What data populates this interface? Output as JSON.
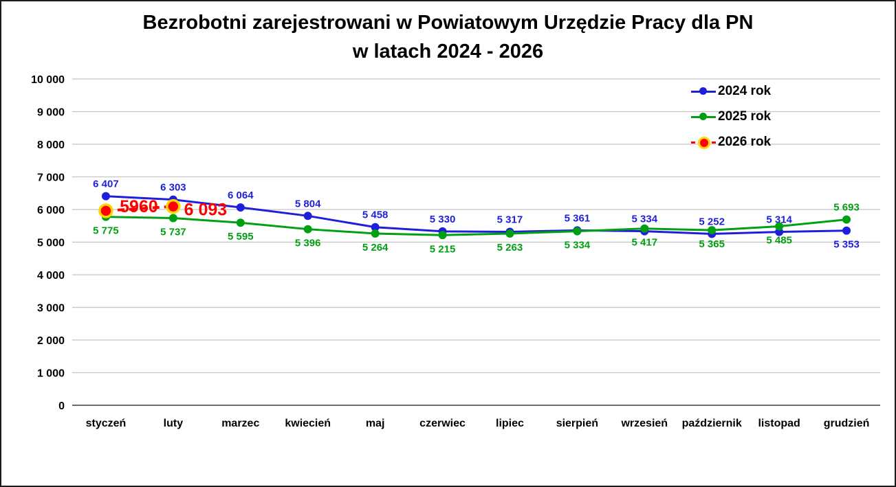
{
  "title": {
    "line1": "Bezrobotni zarejestrowani w Powiatowym Urzędzie Pracy dla PN",
    "line2": "w latach 2024 - 2026"
  },
  "legend": {
    "position": "top-right",
    "items": [
      {
        "label": "2024 rok",
        "color": "#1f1fdb",
        "dashed": false,
        "ring": null
      },
      {
        "label": "2025 rok",
        "color": "#00a012",
        "dashed": false,
        "ring": null
      },
      {
        "label": "2026 rok",
        "color": "#ff0000",
        "dashed": true,
        "ring": "#ffd700"
      }
    ]
  },
  "chart_data": {
    "type": "line",
    "title": "Bezrobotni zarejestrowani w Powiatowym Urzędzie Pracy dla PN w latach 2024 - 2026",
    "categories": [
      "styczeń",
      "luty",
      "marzec",
      "kwiecień",
      "maj",
      "czerwiec",
      "lipiec",
      "sierpień",
      "wrzesień",
      "październik",
      "listopad",
      "grudzień"
    ],
    "xlabel": "",
    "ylabel": "",
    "y_axis": {
      "min": 0,
      "max": 10000,
      "step": 1000,
      "tick_labels": [
        "0",
        "1 000",
        "2 000",
        "3 000",
        "4 000",
        "5 000",
        "6 000",
        "7 000",
        "8 000",
        "9 000",
        "10 000"
      ]
    },
    "grid": true,
    "colors": {
      "gridline": "#c4c4c4",
      "axis_line": "#3a3a3a",
      "text": "#000000"
    },
    "series": [
      {
        "name": "2024 rok",
        "color": "#1f1fdb",
        "dashed": false,
        "marker_radius": 6,
        "marker_ring": null,
        "values": [
          6407,
          6303,
          6064,
          5804,
          5458,
          5330,
          5317,
          5361,
          5334,
          5252,
          5314,
          5353
        ],
        "labels": [
          "6 407",
          "6 303",
          "6 064",
          "5 804",
          "5 458",
          "5 330",
          "5 317",
          "5 361",
          "5 334",
          "5 252",
          "5 314",
          "5 353"
        ],
        "label_side": "above",
        "label_side_overrides": {
          "11": "below"
        },
        "label_font_size": 15
      },
      {
        "name": "2025 rok",
        "color": "#00a012",
        "dashed": false,
        "marker_radius": 6,
        "marker_ring": null,
        "values": [
          5775,
          5737,
          5595,
          5396,
          5264,
          5215,
          5263,
          5334,
          5417,
          5365,
          5485,
          5693
        ],
        "labels": [
          "5 775",
          "5 737",
          "5 595",
          "5 396",
          "5 264",
          "5 215",
          "5 263",
          "5 334",
          "5 417",
          "5 365",
          "5 485",
          "5 693"
        ],
        "label_side": "below",
        "label_side_overrides": {
          "11": "above"
        },
        "label_font_size": 15
      },
      {
        "name": "2026 rok",
        "color": "#ff0000",
        "dashed": true,
        "marker_radius": 9,
        "marker_ring": "#ffd700",
        "values": [
          5960,
          6093
        ],
        "labels": [
          "5960",
          "6 093"
        ],
        "label_side": "custom",
        "label_offsets": [
          {
            "dx": 48,
            "dy": 2
          },
          {
            "dx": 47,
            "dy": 13
          }
        ],
        "label_font_size": 25
      }
    ]
  }
}
